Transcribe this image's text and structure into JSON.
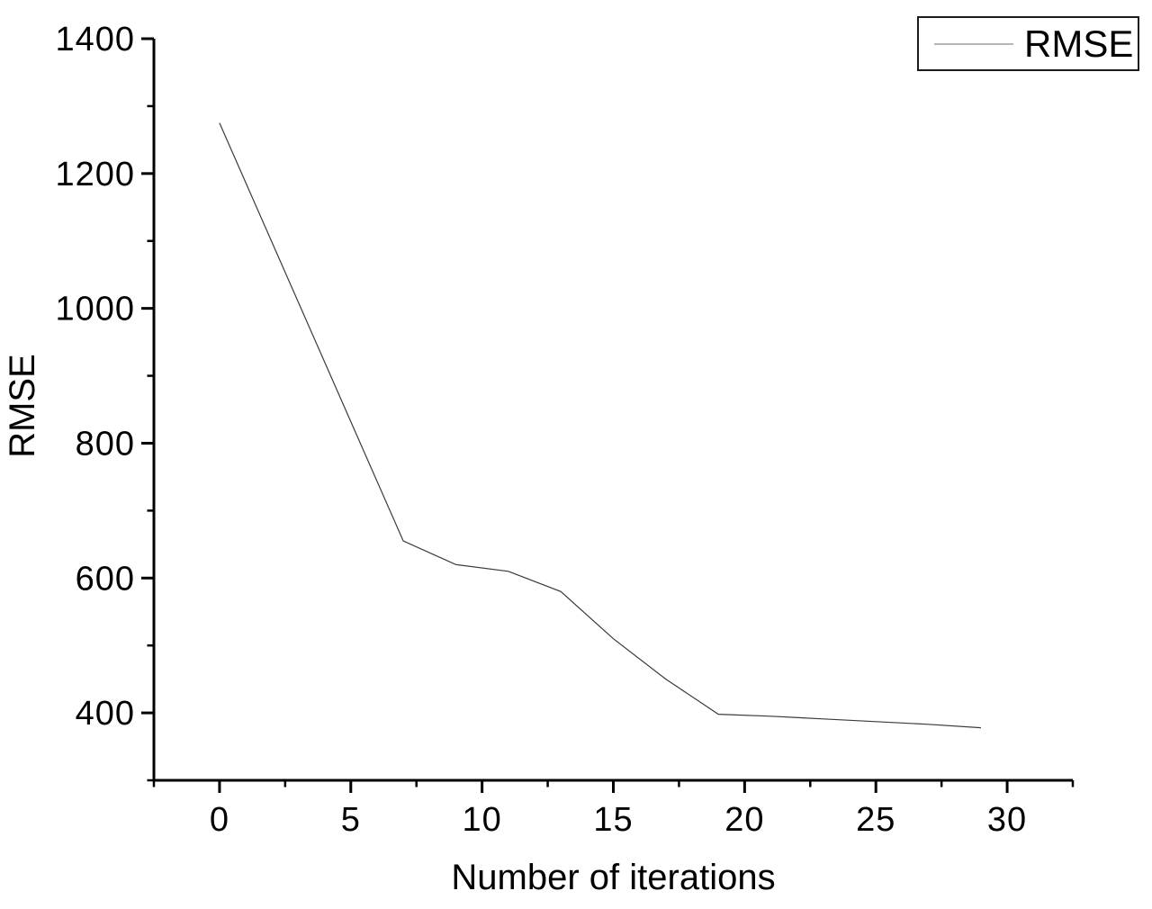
{
  "chart_data": {
    "type": "line",
    "title": "",
    "xlabel": "Number of iterations",
    "ylabel": "RMSE",
    "xlim": [
      -2.5,
      32.5
    ],
    "ylim": [
      300,
      1400
    ],
    "x_major_ticks": [
      0,
      5,
      10,
      15,
      20,
      25,
      30
    ],
    "x_minor_tick_step": 2.5,
    "y_major_ticks": [
      400,
      600,
      800,
      1000,
      1200,
      1400
    ],
    "y_minor_tick_step": 100,
    "grid": false,
    "legend": {
      "position": "top-right",
      "entries": [
        {
          "label": "RMSE",
          "line_color": "#b5b5b5"
        }
      ]
    },
    "series": [
      {
        "name": "RMSE",
        "color": "#3a3a3a",
        "x": [
          0,
          7,
          9,
          11,
          13,
          15,
          17,
          19,
          21,
          23,
          25,
          27,
          29
        ],
        "y": [
          1275,
          655,
          620,
          610,
          580,
          510,
          450,
          398,
          395,
          391,
          387,
          383,
          378
        ]
      }
    ],
    "colors": {
      "axis": "#000000",
      "text": "#000000"
    }
  }
}
